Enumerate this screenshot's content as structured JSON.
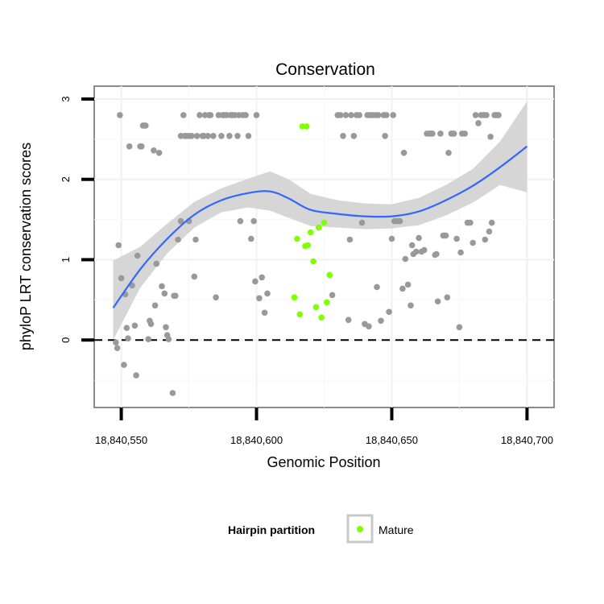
{
  "chart_data": {
    "type": "scatter",
    "title": "Conservation",
    "xlabel": "Genomic Position",
    "ylabel": "phyloP LRT conservation scores",
    "xlim": [
      18840540,
      18840710
    ],
    "ylim": [
      -0.84,
      3.16
    ],
    "x_ticks": [
      18840550,
      18840600,
      18840650,
      18840700
    ],
    "x_tick_labels": [
      "18,840,550",
      "18,840,600",
      "18,840,650",
      "18,840,700"
    ],
    "y_ticks": [
      0,
      1,
      2,
      3
    ],
    "y_tick_labels": [
      "0",
      "1",
      "2",
      "3"
    ],
    "reference_line": {
      "y": 0,
      "style": "dashed"
    },
    "grid": true,
    "legend": {
      "title": "Hairpin partition",
      "placement": "bottom",
      "entries": [
        {
          "label": "Mature",
          "color": "#7fff00"
        }
      ]
    },
    "colors": {
      "hairpin": "#999999",
      "mature": "#7fff00",
      "smooth": "#3366ff",
      "band": "#d6d6d6"
    },
    "series": [
      {
        "color": "#999999",
        "points": [
          [
            18840548,
            -0.03
          ],
          [
            18840548.5,
            -0.1
          ],
          [
            18840549,
            1.18
          ],
          [
            18840549.5,
            2.8
          ],
          [
            18840550,
            0.77
          ],
          [
            18840551,
            -0.31
          ],
          [
            18840551.5,
            0.57
          ],
          [
            18840552,
            0.15
          ],
          [
            18840552.5,
            0.02
          ],
          [
            18840553,
            2.41
          ],
          [
            18840554,
            0.68
          ],
          [
            18840555,
            0.18
          ],
          [
            18840555.5,
            -0.44
          ],
          [
            18840556,
            1.05
          ],
          [
            18840557,
            2.41
          ],
          [
            18840557.5,
            2.41
          ],
          [
            18840558,
            2.67
          ],
          [
            18840558.5,
            2.67
          ],
          [
            18840559,
            2.67
          ],
          [
            18840560,
            0.01
          ],
          [
            18840560.5,
            0.24
          ],
          [
            18840561,
            0.2
          ],
          [
            18840562,
            2.36
          ],
          [
            18840562.5,
            0.43
          ],
          [
            18840563,
            0.95
          ],
          [
            18840564,
            2.33
          ],
          [
            18840565,
            0.67
          ],
          [
            18840566,
            0.58
          ],
          [
            18840566.5,
            0.16
          ],
          [
            18840567,
            0.06
          ],
          [
            18840567.5,
            0.01
          ],
          [
            18840569,
            -0.66
          ],
          [
            18840569.5,
            0.55
          ],
          [
            18840570,
            0.55
          ],
          [
            18840571,
            1.25
          ],
          [
            18840572,
            2.54
          ],
          [
            18840572,
            1.48
          ],
          [
            18840573,
            2.8
          ],
          [
            18840573.5,
            2.54
          ],
          [
            18840574,
            2.54
          ],
          [
            18840575,
            1.48
          ],
          [
            18840575,
            2.54
          ],
          [
            18840576,
            2.54
          ],
          [
            18840577,
            0.79
          ],
          [
            18840577.5,
            1.25
          ],
          [
            18840578,
            2.54
          ],
          [
            18840579,
            2.8
          ],
          [
            18840580,
            2.54
          ],
          [
            18840580.5,
            2.54
          ],
          [
            18840581,
            2.8
          ],
          [
            18840582,
            2.54
          ],
          [
            18840582.5,
            2.8
          ],
          [
            18840583,
            2.8
          ],
          [
            18840584,
            2.54
          ],
          [
            18840585,
            0.53
          ],
          [
            18840586,
            2.8
          ],
          [
            18840587,
            2.54
          ],
          [
            18840587.5,
            2.8
          ],
          [
            18840588,
            2.8
          ],
          [
            18840589,
            2.8
          ],
          [
            18840590,
            2.54
          ],
          [
            18840590.5,
            2.8
          ],
          [
            18840591,
            2.8
          ],
          [
            18840592,
            2.8
          ],
          [
            18840593,
            2.54
          ],
          [
            18840593.5,
            2.8
          ],
          [
            18840594,
            1.48
          ],
          [
            18840595,
            2.8
          ],
          [
            18840596,
            2.8
          ],
          [
            18840597,
            2.54
          ],
          [
            18840598,
            1.26
          ],
          [
            18840599,
            1.48
          ],
          [
            18840599.5,
            0.73
          ],
          [
            18840600,
            2.8
          ],
          [
            18840601,
            0.52
          ],
          [
            18840602,
            0.78
          ],
          [
            18840603,
            0.34
          ],
          [
            18840604,
            0.58
          ],
          [
            18840628,
            0.56
          ],
          [
            18840630,
            2.8
          ],
          [
            18840631,
            2.8
          ],
          [
            18840632,
            2.54
          ],
          [
            18840633,
            2.8
          ],
          [
            18840634,
            0.25
          ],
          [
            18840634.5,
            1.25
          ],
          [
            18840635,
            2.8
          ],
          [
            18840636,
            2.54
          ],
          [
            18840637,
            2.8
          ],
          [
            18840638,
            2.8
          ],
          [
            18840639,
            1.46
          ],
          [
            18840640,
            0.2
          ],
          [
            18840641,
            2.8
          ],
          [
            18840641.5,
            0.17
          ],
          [
            18840642,
            2.8
          ],
          [
            18840643,
            2.8
          ],
          [
            18840644,
            2.8
          ],
          [
            18840644.5,
            0.66
          ],
          [
            18840645,
            2.8
          ],
          [
            18840646,
            0.24
          ],
          [
            18840647,
            2.8
          ],
          [
            18840647.5,
            2.54
          ],
          [
            18840648,
            2.8
          ],
          [
            18840649,
            0.35
          ],
          [
            18840650,
            1.26
          ],
          [
            18840650.5,
            2.8
          ],
          [
            18840651,
            1.48
          ],
          [
            18840652,
            1.48
          ],
          [
            18840653,
            1.48
          ],
          [
            18840654,
            0.64
          ],
          [
            18840654.5,
            2.33
          ],
          [
            18840655,
            1.01
          ],
          [
            18840656,
            0.69
          ],
          [
            18840657,
            0.43
          ],
          [
            18840657.5,
            1.18
          ],
          [
            18840658,
            1.07
          ],
          [
            18840659,
            1.1
          ],
          [
            18840660,
            1.27
          ],
          [
            18840661,
            1.1
          ],
          [
            18840662,
            1.12
          ],
          [
            18840663,
            2.57
          ],
          [
            18840664,
            2.57
          ],
          [
            18840664.5,
            2.57
          ],
          [
            18840665,
            2.57
          ],
          [
            18840666,
            1.06
          ],
          [
            18840666.5,
            1.07
          ],
          [
            18840667,
            0.48
          ],
          [
            18840668,
            2.57
          ],
          [
            18840669,
            1.3
          ],
          [
            18840669.5,
            1.3
          ],
          [
            18840670,
            1.3
          ],
          [
            18840670.5,
            0.53
          ],
          [
            18840671,
            2.33
          ],
          [
            18840672,
            2.57
          ],
          [
            18840672.5,
            2.57
          ],
          [
            18840673,
            2.57
          ],
          [
            18840674,
            1.26
          ],
          [
            18840675,
            0.16
          ],
          [
            18840675.5,
            1.09
          ],
          [
            18840676,
            2.57
          ],
          [
            18840677,
            2.57
          ],
          [
            18840678,
            1.46
          ],
          [
            18840679,
            1.46
          ],
          [
            18840680,
            1.21
          ],
          [
            18840681,
            2.8
          ],
          [
            18840682,
            2.7
          ],
          [
            18840683,
            2.8
          ],
          [
            18840684,
            2.8
          ],
          [
            18840684.5,
            1.25
          ],
          [
            18840685,
            2.8
          ],
          [
            18840686,
            1.35
          ],
          [
            18840686.5,
            2.53
          ],
          [
            18840687,
            1.46
          ],
          [
            18840688,
            2.8
          ],
          [
            18840688.5,
            2.8
          ],
          [
            18840689,
            2.8
          ],
          [
            18840689.5,
            2.8
          ]
        ]
      },
      {
        "name": "Mature",
        "color": "#7fff00",
        "points": [
          [
            18840614,
            0.53
          ],
          [
            18840615,
            1.26
          ],
          [
            18840616,
            0.32
          ],
          [
            18840617,
            2.66
          ],
          [
            18840618,
            1.17
          ],
          [
            18840618.5,
            2.66
          ],
          [
            18840619,
            1.18
          ],
          [
            18840620,
            1.34
          ],
          [
            18840621,
            0.98
          ],
          [
            18840622,
            0.41
          ],
          [
            18840623,
            1.4
          ],
          [
            18840624,
            0.28
          ],
          [
            18840625,
            1.46
          ],
          [
            18840626,
            0.47
          ],
          [
            18840627,
            0.81
          ]
        ]
      }
    ],
    "smooth": {
      "color": "#3366ff",
      "x": [
        18840547,
        18840557,
        18840567,
        18840577,
        18840587,
        18840597,
        18840605,
        18840612,
        18840620,
        18840630,
        18840640,
        18840650,
        18840660,
        18840670,
        18840680,
        18840690,
        18840700
      ],
      "y": [
        0.4,
        0.88,
        1.26,
        1.56,
        1.74,
        1.83,
        1.85,
        1.76,
        1.62,
        1.57,
        1.54,
        1.54,
        1.6,
        1.74,
        1.92,
        2.15,
        2.41
      ],
      "lower": [
        0.0,
        0.65,
        1.08,
        1.4,
        1.59,
        1.65,
        1.61,
        1.52,
        1.42,
        1.4,
        1.38,
        1.39,
        1.43,
        1.55,
        1.71,
        1.93,
        1.84
      ],
      "upper": [
        0.99,
        1.16,
        1.45,
        1.72,
        1.89,
        2.01,
        2.1,
        2.0,
        1.82,
        1.74,
        1.7,
        1.69,
        1.77,
        1.93,
        2.13,
        2.47,
        2.97
      ]
    }
  }
}
